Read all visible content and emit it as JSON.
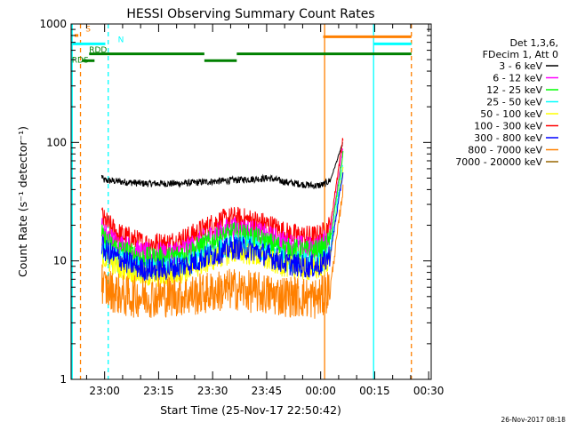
{
  "chart_data": {
    "type": "line",
    "title": "HESSI Observing Summary Count Rates",
    "xlabel": "Start Time (25-Nov-17 22:50:42)",
    "ylabel": "Count Rate (s⁻¹ detector⁻¹)",
    "yscale": "log",
    "ylim": [
      1,
      1000
    ],
    "xlim_minutes_since_start": [
      0,
      100
    ],
    "x_unit": "minutes since 25-Nov-17 22:50:42",
    "x_tick_labels": [
      "23:00",
      "23:15",
      "23:30",
      "23:45",
      "00:00",
      "00:15",
      "00:30"
    ],
    "x_tick_minutes": [
      9.3,
      24.3,
      39.3,
      54.3,
      69.3,
      84.3,
      99.3
    ],
    "y_tick_labels": [
      "1",
      "10",
      "100",
      "1000"
    ],
    "y_tick_values": [
      1,
      10,
      100,
      1000
    ],
    "timestamp": "26-Nov-2017 08:18",
    "legend": {
      "header": [
        "Det 1,3,6,",
        "FDecim 1, Att 0"
      ],
      "entries": [
        {
          "label": "3 - 6 keV",
          "color": "#000000"
        },
        {
          "label": "6 - 12 keV",
          "color": "#ff00ff"
        },
        {
          "label": "12 - 25 keV",
          "color": "#00ff00"
        },
        {
          "label": "25 - 50 keV",
          "color": "#00ffff"
        },
        {
          "label": "50 - 100 keV",
          "color": "#ffff00"
        },
        {
          "label": "100 - 300 keV",
          "color": "#ff0000"
        },
        {
          "label": "300 - 800 keV",
          "color": "#0000ff"
        },
        {
          "label": "800 - 7000 keV",
          "color": "#ff8000"
        },
        {
          "label": "7000 - 20000 keV",
          "color": "#996600"
        }
      ]
    },
    "series": [
      {
        "color": "#000000",
        "noise": 0.03,
        "x": [
          8.5,
          9,
          20,
          30,
          40,
          50,
          55,
          60,
          65,
          68,
          70,
          72,
          75.5
        ],
        "y": [
          52,
          48,
          45,
          45,
          47,
          49,
          50,
          46,
          44,
          43,
          44,
          48,
          100
        ]
      },
      {
        "color": "#ff0000",
        "noise": 0.1,
        "x": [
          8.5,
          9,
          13,
          20,
          27,
          33,
          40,
          45,
          50,
          55,
          60,
          65,
          68,
          70,
          72,
          75.5
        ],
        "y": [
          25,
          22,
          17,
          14,
          14,
          16,
          21,
          23,
          22,
          20,
          17,
          16,
          16,
          17,
          20,
          110
        ]
      },
      {
        "color": "#ff00ff",
        "noise": 0.1,
        "x": [
          8.5,
          9,
          13,
          20,
          27,
          33,
          40,
          45,
          50,
          55,
          60,
          65,
          68,
          70,
          72,
          75.5
        ],
        "y": [
          19,
          17,
          14,
          11.5,
          11.5,
          13,
          17,
          19,
          18,
          16,
          14,
          13,
          13,
          14,
          17,
          90
        ]
      },
      {
        "color": "#00ff00",
        "noise": 0.1,
        "x": [
          8.5,
          9,
          13,
          20,
          27,
          33,
          40,
          45,
          50,
          55,
          60,
          65,
          68,
          70,
          72,
          75.5
        ],
        "y": [
          17,
          15,
          12.5,
          10.5,
          10.5,
          12,
          15,
          17,
          16,
          14,
          12.5,
          12,
          12,
          12.5,
          15,
          80
        ]
      },
      {
        "color": "#00ffff",
        "noise": 0.1,
        "x": [
          8.5,
          9,
          13,
          20,
          27,
          33,
          40,
          45,
          50,
          55,
          60,
          65,
          68,
          70,
          72,
          75.5
        ],
        "y": [
          13.5,
          12,
          10,
          8.5,
          8.5,
          9.5,
          12,
          13.5,
          13,
          11.5,
          10,
          9.5,
          9.5,
          10,
          12.5,
          65
        ]
      },
      {
        "color": "#ffff00",
        "noise": 0.1,
        "x": [
          8.5,
          9,
          13,
          20,
          27,
          33,
          40,
          45,
          50,
          55,
          60,
          65,
          68,
          70,
          72,
          75.5
        ],
        "y": [
          12,
          10.5,
          9,
          7.5,
          7.5,
          8.5,
          10.5,
          12,
          11.5,
          10,
          9,
          8.5,
          8.5,
          9,
          11,
          60
        ]
      },
      {
        "color": "#0000ff",
        "noise": 0.1,
        "x": [
          8.5,
          9,
          13,
          20,
          27,
          33,
          40,
          45,
          50,
          55,
          60,
          65,
          68,
          70,
          72,
          75.5
        ],
        "y": [
          14,
          12.5,
          10.5,
          8.5,
          8.5,
          9.5,
          11.5,
          13,
          12.5,
          11,
          9.5,
          9,
          9,
          9.5,
          11.5,
          55
        ]
      },
      {
        "color": "#ff8000",
        "noise": 0.18,
        "x": [
          8.5,
          9,
          15,
          25,
          35,
          45,
          55,
          62,
          68,
          70,
          72,
          75.5
        ],
        "y": [
          7,
          6,
          5,
          5,
          5.2,
          5.8,
          5.2,
          5,
          4.8,
          5,
          6,
          40
        ]
      },
      {
        "color": "#996600",
        "noise": 0.05,
        "x": [],
        "y": []
      }
    ],
    "bars": [
      {
        "label": "S",
        "color": "#ff8000",
        "y": 800,
        "x": [
          1,
          2
        ]
      },
      {
        "label": "N",
        "color": "#00ffff",
        "y": 680,
        "x": [
          0,
          9.5
        ]
      },
      {
        "label": "N",
        "color": "#00ffff",
        "y": 680,
        "x": [
          84,
          94.5
        ]
      },
      {
        "label": "RDD",
        "color": "#008000",
        "y": 560,
        "x": [
          5,
          37
        ]
      },
      {
        "label": "RDD",
        "color": "#008000",
        "y": 560,
        "x": [
          46,
          94.5
        ]
      },
      {
        "label": "RDD",
        "color": "#008000",
        "y": 490,
        "x": [
          37,
          46
        ]
      },
      {
        "label": "RDS",
        "color": "#008000",
        "y": 490,
        "x": [
          3,
          6.5
        ]
      },
      {
        "label": "",
        "color": "#ff8000",
        "y": 780,
        "x": [
          70,
          94.5
        ]
      }
    ],
    "vlines": [
      {
        "x": 0.3,
        "color": "#00ffff",
        "dashed": false
      },
      {
        "x": 2.6,
        "color": "#ff8000",
        "dashed": true
      },
      {
        "x": 10.3,
        "color": "#00ffff",
        "dashed": true
      },
      {
        "x": 70.4,
        "color": "#ff8000",
        "dashed": false
      },
      {
        "x": 84,
        "color": "#00ffff",
        "dashed": false
      },
      {
        "x": 94.5,
        "color": "#ff8000",
        "dashed": true
      }
    ],
    "bar_labels": [
      {
        "text": "S",
        "color": "#ff8000",
        "x": 4,
        "y": 860
      },
      {
        "text": "N",
        "color": "#00ffff",
        "x": 13,
        "y": 700
      },
      {
        "text": "RDD",
        "color": "#008000",
        "x": 5,
        "y": 575
      },
      {
        "text": "RDS",
        "color": "#008000",
        "x": 0.2,
        "y": 470
      }
    ]
  }
}
